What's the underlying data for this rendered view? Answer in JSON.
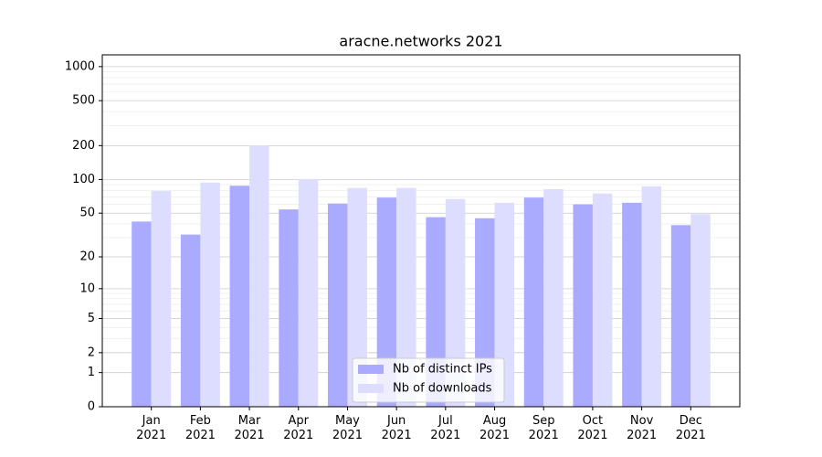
{
  "chart_data": {
    "type": "bar",
    "title": "aracne.networks 2021",
    "categories": [
      "Jan\n2021",
      "Feb\n2021",
      "Mar\n2021",
      "Apr\n2021",
      "May\n2021",
      "Jun\n2021",
      "Jul\n2021",
      "Aug\n2021",
      "Sep\n2021",
      "Oct\n2021",
      "Nov\n2021",
      "Dec\n2021"
    ],
    "series": [
      {
        "name": "Nb of distinct IPs",
        "color": "#aaaaff",
        "values": [
          42,
          32,
          88,
          54,
          61,
          69,
          46,
          45,
          69,
          60,
          62,
          39
        ]
      },
      {
        "name": "Nb of downloads",
        "color": "#ddddff",
        "values": [
          79,
          94,
          201,
          101,
          84,
          84,
          67,
          62,
          82,
          75,
          87,
          49
        ]
      }
    ],
    "yscale": "log1p",
    "ylim": [
      0,
      1270
    ],
    "yticks": [
      0,
      1,
      2,
      5,
      10,
      20,
      50,
      100,
      200,
      500,
      1000
    ],
    "grid": true,
    "legend": "lower center"
  }
}
